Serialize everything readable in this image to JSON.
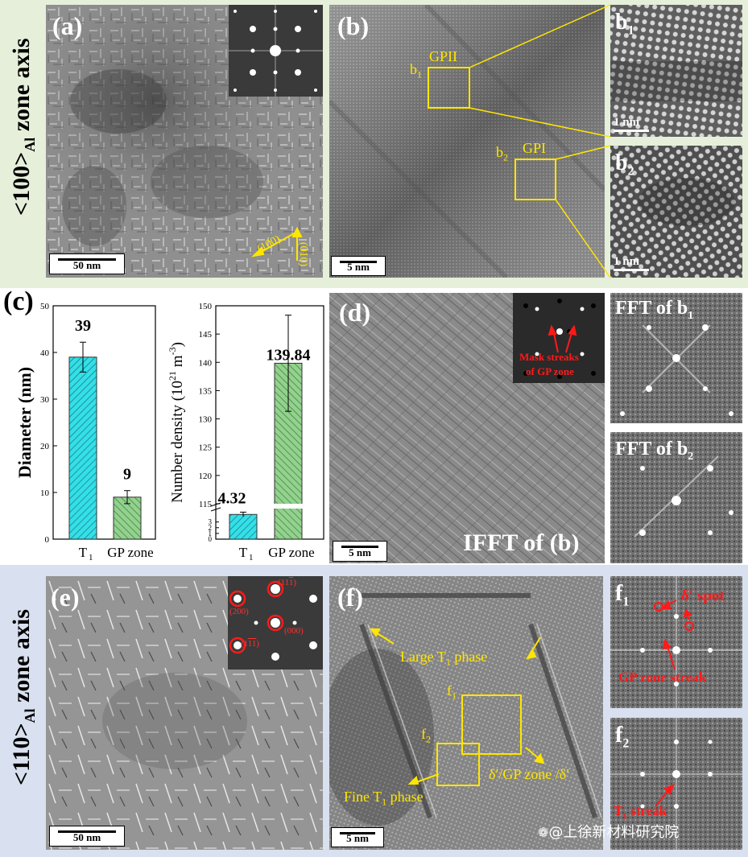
{
  "zone_top": {
    "main": "<100>",
    "sub": "Al",
    "tail": " zone axis"
  },
  "zone_bottom": {
    "main": "<110>",
    "sub": "Al",
    "tail": " zone axis"
  },
  "panel_a": {
    "label": "(a)",
    "scale": "50 nm",
    "dir1": "(100)",
    "dir2": "(010)"
  },
  "panel_b": {
    "label": "(b)",
    "scale": "5 nm",
    "box1_label": "GPII",
    "box1_tag": "b",
    "box1_sub": "1",
    "box2_label": "GPI",
    "box2_tag": "b",
    "box2_sub": "2"
  },
  "panel_b1": {
    "tag": "b",
    "sub": "1",
    "scale": "1 nm"
  },
  "panel_b2": {
    "tag": "b",
    "sub": "2",
    "scale": "1 nm"
  },
  "panel_c": {
    "label": "(c)"
  },
  "panel_d": {
    "label": "(d)",
    "scale": "5 nm",
    "title": "IFFT of (b)",
    "mask_line1": "Mask streaks",
    "mask_line2": "of GP zone"
  },
  "panel_fft_b1": {
    "text": "FFT of b",
    "sub": "1"
  },
  "panel_fft_b2": {
    "text": "FFT of b",
    "sub": "2"
  },
  "panel_e": {
    "label": "(e)",
    "scale": "50 nm",
    "spots": [
      "(11",
      "(200)",
      "(000)",
      "(11"
    ]
  },
  "panel_f": {
    "label": "(f)",
    "scale": "5 nm",
    "large_t1": "Large T",
    "large_t1_sub": "1",
    "large_t1_tail": " phase",
    "fine_t1": "Fine T",
    "fine_t1_sub": "1",
    "fine_t1_tail": " phase",
    "delta": "δ′/GP zone /δ′",
    "f1_tag": "f",
    "f1_sub": "1",
    "f2_tag": "f",
    "f2_sub": "2"
  },
  "panel_f1": {
    "tag": "f",
    "sub": "1",
    "spot_label": "δ′ spot",
    "streak_label": "GP zone streak"
  },
  "panel_f2": {
    "tag": "f",
    "sub": "2",
    "streak_label": "T",
    "streak_sub": "1",
    "streak_tail": " streak"
  },
  "watermark": "@上徐新材料研究院",
  "chart_data": [
    {
      "type": "bar",
      "categories": [
        "T1",
        "GP zone"
      ],
      "category_display": {
        "t": "T",
        "t_sub": "1",
        "gp": "GP zone"
      },
      "values": [
        39,
        9
      ],
      "errors": [
        3.2,
        1.4
      ],
      "data_labels": [
        "39",
        "9"
      ],
      "ylabel": "Diameter (nm)",
      "ylim": [
        0,
        50
      ],
      "yticks": [
        0,
        10,
        20,
        30,
        40,
        50
      ],
      "colors": [
        "#33e0e6",
        "#93d18e"
      ]
    },
    {
      "type": "bar",
      "categories": [
        "T1",
        "GP zone"
      ],
      "category_display": {
        "t": "T",
        "t_sub": "1",
        "gp": "GP zone"
      },
      "values": [
        4.32,
        139.84
      ],
      "errors": [
        0.4,
        8.5
      ],
      "data_labels": [
        "4.32",
        "139.84"
      ],
      "ylabel_pre": "Number density (10",
      "ylabel_exp1": "21",
      "ylabel_mid": " m",
      "ylabel_exp2": "-3",
      "ylabel_post": ")",
      "axis_break": true,
      "yticks_lower": [
        0,
        1,
        2,
        3
      ],
      "yticks_upper": [
        115,
        120,
        125,
        130,
        135,
        140,
        145,
        150
      ],
      "colors": [
        "#33e0e6",
        "#93d18e"
      ]
    }
  ]
}
